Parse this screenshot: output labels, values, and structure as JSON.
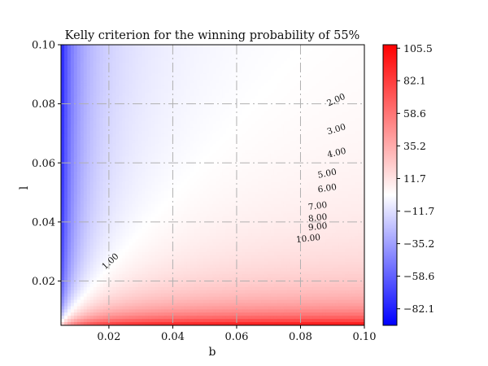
{
  "chart_data": {
    "type": "heatmap",
    "title": "Kelly criterion for the winning probability of 55%",
    "xlabel": "b",
    "ylabel": "l",
    "xlim": [
      0.005,
      0.1
    ],
    "ylim": [
      0.005,
      0.1
    ],
    "x_ticks": [
      0.02,
      0.04,
      0.06,
      0.08,
      0.1
    ],
    "x_tick_labels": [
      "0.02",
      "0.04",
      "0.06",
      "0.08",
      "0.10"
    ],
    "y_ticks": [
      0.02,
      0.04,
      0.06,
      0.08,
      0.1
    ],
    "y_tick_labels": [
      "0.02",
      "0.04",
      "0.06",
      "0.08",
      "0.10"
    ],
    "grid": true,
    "win_probability": 0.55,
    "colormap": "bwr",
    "color_low": "#0000ff",
    "color_mid": "#ffffff",
    "color_high": "#ff0000",
    "colorbar": {
      "vmin": -94,
      "vmax": 108,
      "ticks": [
        105.5,
        82.1,
        58.6,
        35.2,
        11.7,
        -11.7,
        -35.2,
        -58.6,
        -82.1
      ],
      "tick_labels": [
        "105.5",
        "82.1",
        "58.6",
        "35.2",
        "11.7",
        "−11.7",
        "−35.2",
        "−58.6",
        "−82.1"
      ]
    },
    "contours": [
      {
        "level": 1.0,
        "label": "1.00",
        "label_at": [
          0.021,
          0.026
        ],
        "angle": -43
      },
      {
        "level": 2.0,
        "label": "2.00",
        "label_at": [
          0.0915,
          0.0805
        ],
        "angle": -24
      },
      {
        "level": 3.0,
        "label": "3.00",
        "label_at": [
          0.0915,
          0.0705
        ],
        "angle": -17
      },
      {
        "level": 4.0,
        "label": "4.00",
        "label_at": [
          0.0915,
          0.0625
        ],
        "angle": -13
      },
      {
        "level": 5.0,
        "label": "5.00",
        "label_at": [
          0.0885,
          0.0555
        ],
        "angle": -11
      },
      {
        "level": 6.0,
        "label": "6.00",
        "label_at": [
          0.0885,
          0.0505
        ],
        "angle": -9
      },
      {
        "level": 7.0,
        "label": "7.00",
        "label_at": [
          0.0855,
          0.0445
        ],
        "angle": -8
      },
      {
        "level": 8.0,
        "label": "8.00",
        "label_at": [
          0.0855,
          0.0405
        ],
        "angle": -7
      },
      {
        "level": 9.0,
        "label": "9.00",
        "label_at": [
          0.0855,
          0.0375
        ],
        "angle": -6
      },
      {
        "level": 10.0,
        "label": "10.00",
        "label_at": [
          0.0825,
          0.0335
        ],
        "angle": -6
      }
    ]
  }
}
